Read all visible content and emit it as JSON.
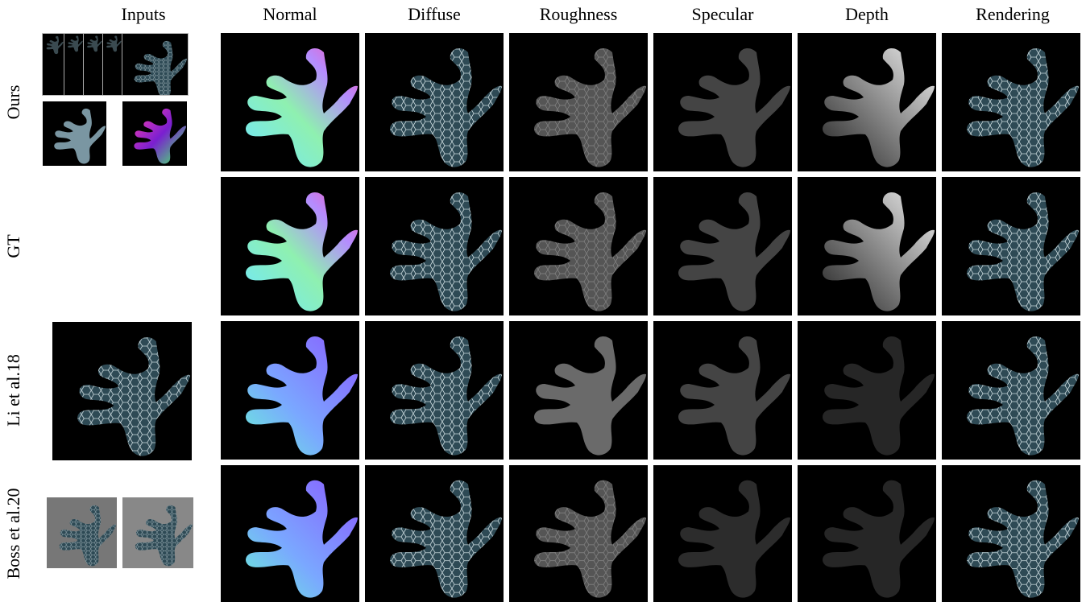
{
  "columns": {
    "inputs": "Inputs",
    "normal": "Normal",
    "diffuse": "Diffuse",
    "roughness": "Roughness",
    "specular": "Specular",
    "depth": "Depth",
    "rendering": "Rendering"
  },
  "rows": {
    "ours": "Ours",
    "gt": "GT",
    "li": "Li et al.18",
    "boss": "Boss et al.20"
  }
}
